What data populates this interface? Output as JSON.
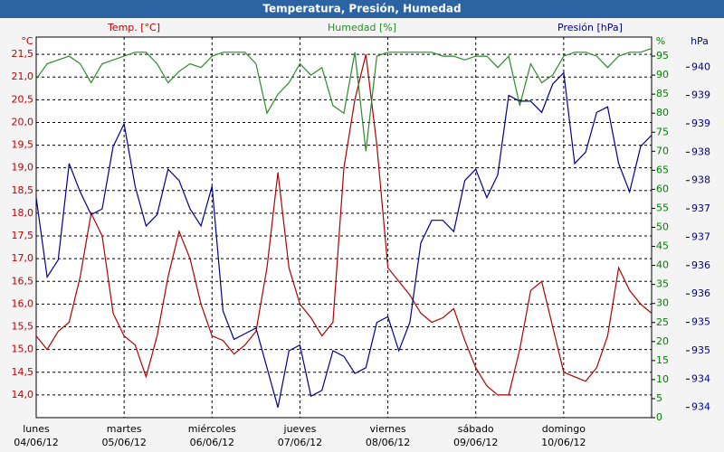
{
  "chart_data": {
    "type": "line",
    "title": "Temperatura, Presión, Humedad",
    "x": [
      0,
      0.125,
      0.25,
      0.375,
      0.5,
      0.625,
      0.75,
      0.875,
      1,
      1.125,
      1.25,
      1.375,
      1.5,
      1.625,
      1.75,
      1.875,
      2,
      2.125,
      2.25,
      2.375,
      2.5,
      2.625,
      2.75,
      2.875,
      3,
      3.125,
      3.25,
      3.375,
      3.5,
      3.625,
      3.75,
      3.875,
      4,
      4.125,
      4.25,
      4.375,
      4.5,
      4.625,
      4.75,
      4.875,
      5,
      5.125,
      5.25,
      5.375,
      5.5,
      5.625,
      5.75,
      5.875,
      6,
      6.125,
      6.25,
      6.375,
      6.5,
      6.625,
      6.75,
      6.875,
      7
    ],
    "xlim": [
      0,
      7
    ],
    "xticks": [
      0,
      1,
      2,
      3,
      4,
      5,
      6
    ],
    "xtick_labels": [
      [
        "lunes",
        "04/06/12"
      ],
      [
        "martes",
        "05/06/12"
      ],
      [
        "miércoles",
        "06/06/12"
      ],
      [
        "jueves",
        "07/06/12"
      ],
      [
        "viernes",
        "08/06/12"
      ],
      [
        "sábado",
        "09/06/12"
      ],
      [
        "domingo",
        "10/06/12"
      ]
    ],
    "y_unit": "°C",
    "y2_unit": "%",
    "y3_unit": "hPa",
    "ylim": [
      13.5,
      21.88
    ],
    "yticks": [
      {
        "value": 14,
        "label": "14,0"
      },
      {
        "value": 14.5,
        "label": "14,5"
      },
      {
        "value": 15,
        "label": "15,0"
      },
      {
        "value": 15.5,
        "label": "15,5"
      },
      {
        "value": 16,
        "label": "16,0"
      },
      {
        "value": 16.5,
        "label": "16,5"
      },
      {
        "value": 17,
        "label": "17,0"
      },
      {
        "value": 17.5,
        "label": "17,5"
      },
      {
        "value": 18,
        "label": "18,0"
      },
      {
        "value": 18.5,
        "label": "18,5"
      },
      {
        "value": 19,
        "label": "19,0"
      },
      {
        "value": 19.5,
        "label": "19,5"
      },
      {
        "value": 20,
        "label": "20,0"
      },
      {
        "value": 20.5,
        "label": "20,5"
      },
      {
        "value": 21,
        "label": "21,0"
      },
      {
        "value": 21.5,
        "label": "21,5"
      }
    ],
    "y2lim": [
      0,
      100
    ],
    "y2ticks": [
      0,
      5,
      10,
      15,
      20,
      25,
      30,
      35,
      40,
      45,
      50,
      55,
      60,
      65,
      70,
      75,
      80,
      85,
      90,
      95
    ],
    "y3lim": [
      933.82,
      940.53
    ],
    "y3ticks": [
      {
        "value": 934,
        "label": "934"
      },
      {
        "value": 934.5,
        "label": "934"
      },
      {
        "value": 935,
        "label": "935"
      },
      {
        "value": 935.5,
        "label": "935"
      },
      {
        "value": 936,
        "label": "936"
      },
      {
        "value": 936.5,
        "label": "936"
      },
      {
        "value": 937,
        "label": "937"
      },
      {
        "value": 937.5,
        "label": "937"
      },
      {
        "value": 938,
        "label": "938"
      },
      {
        "value": 938.5,
        "label": "938"
      },
      {
        "value": 939,
        "label": "939"
      },
      {
        "value": 939.5,
        "label": "939"
      },
      {
        "value": 940,
        "label": "940"
      }
    ],
    "grid": true,
    "series": [
      {
        "name": "Temp. [°C]",
        "color": "#b00000",
        "axis": "y",
        "values": [
          15.3,
          15.0,
          15.4,
          15.6,
          16.6,
          18.0,
          17.5,
          15.8,
          15.3,
          15.1,
          14.4,
          15.3,
          16.6,
          17.6,
          17.0,
          16.0,
          15.3,
          15.2,
          14.9,
          15.1,
          15.4,
          16.8,
          18.9,
          16.8,
          16.0,
          15.7,
          15.3,
          15.6,
          19.0,
          20.5,
          21.5,
          19.5,
          16.8,
          16.5,
          16.2,
          15.8,
          15.6,
          15.7,
          15.9,
          15.2,
          14.6,
          14.2,
          14.0,
          14.0,
          15.0,
          16.3,
          16.5,
          15.5,
          14.5,
          14.4,
          14.3,
          14.6,
          15.3,
          16.8,
          16.3,
          16.0,
          15.8
        ]
      },
      {
        "name": "Humedad [%]",
        "color": "#2a8a2a",
        "axis": "y2",
        "values": [
          89,
          93,
          94,
          95,
          93,
          88,
          93,
          94,
          95,
          96,
          96,
          93,
          88,
          91,
          93,
          92,
          95,
          96,
          96,
          96,
          93,
          80,
          85,
          88,
          93,
          90,
          92,
          82,
          80,
          96,
          70,
          95,
          96,
          96,
          96,
          96,
          96,
          95,
          95,
          94,
          95,
          95,
          92,
          95,
          82,
          93,
          88,
          90,
          95,
          96,
          96,
          95,
          92,
          95,
          96,
          96,
          97
        ]
      },
      {
        "name": "Presión [hPa]",
        "color": "#00008b",
        "axis": "y3",
        "values": [
          937.7,
          936.3,
          936.6,
          938.3,
          937.8,
          937.4,
          937.5,
          938.6,
          939.0,
          937.9,
          937.2,
          937.4,
          938.2,
          938.0,
          937.5,
          937.2,
          937.9,
          935.7,
          935.2,
          935.3,
          935.4,
          934.7,
          934.0,
          935.0,
          935.1,
          934.2,
          934.3,
          935.0,
          934.9,
          934.6,
          934.7,
          935.5,
          935.6,
          935.0,
          935.5,
          936.9,
          937.3,
          937.3,
          937.1,
          938.0,
          938.2,
          937.7,
          938.1,
          939.5,
          939.4,
          939.4,
          939.2,
          939.7,
          939.9,
          938.3,
          938.5,
          939.2,
          939.3,
          938.3,
          937.8,
          938.6,
          938.8
        ]
      }
    ]
  }
}
